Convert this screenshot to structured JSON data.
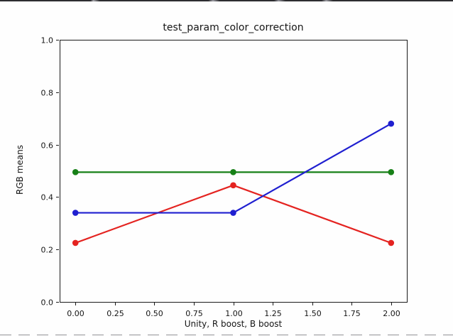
{
  "window": {
    "background": "#fefefe"
  },
  "chart_data": {
    "type": "line",
    "title": "test_param_color_correction",
    "xlabel": "Unity, R boost, B boost",
    "ylabel": "RGB means",
    "x": [
      0.0,
      1.0,
      2.0
    ],
    "series": [
      {
        "name": "red",
        "color": "#e42320",
        "values": [
          0.225,
          0.445,
          0.225
        ]
      },
      {
        "name": "green",
        "color": "#178017",
        "values": [
          0.495,
          0.495,
          0.495
        ]
      },
      {
        "name": "blue",
        "color": "#1f1fd0",
        "values": [
          0.34,
          0.34,
          0.68
        ]
      }
    ],
    "xlim": [
      -0.1,
      2.1
    ],
    "ylim": [
      0.0,
      1.0
    ],
    "xticks": {
      "values": [
        0,
        0.25,
        0.5,
        0.75,
        1.0,
        1.25,
        1.5,
        1.75,
        2.0
      ],
      "labels": [
        "0.00",
        "0.25",
        "0.50",
        "0.75",
        "1.00",
        "1.25",
        "1.50",
        "1.75",
        "2.00"
      ]
    },
    "yticks": {
      "values": [
        0.0,
        0.2,
        0.4,
        0.6,
        0.8,
        1.0
      ],
      "labels": [
        "0.0",
        "0.2",
        "0.4",
        "0.6",
        "0.8",
        "1.0"
      ]
    },
    "grid": false,
    "legend": "none",
    "marker": "circle",
    "spine_color": "#1a1a1a"
  }
}
